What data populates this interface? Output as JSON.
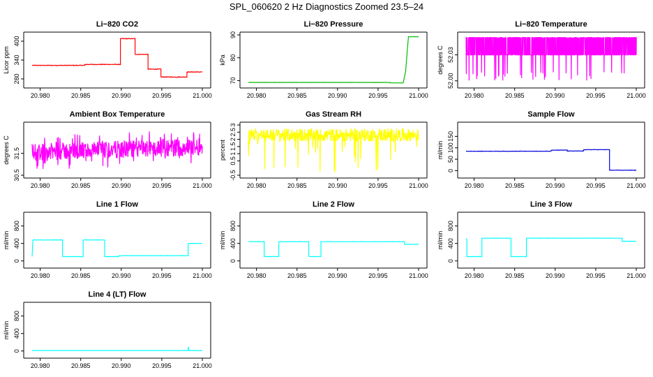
{
  "title": "SPL_060620  2 Hz Diagnostics Zoomed 23.5–24",
  "x_ticks": [
    "20.980",
    "20.985",
    "20.990",
    "20.995",
    "21.000"
  ],
  "chart_data": [
    {
      "type": "line",
      "title": "Li−820 CO2",
      "ylabel": "Licor ppm",
      "xlim": [
        20.979,
        21.0
      ],
      "ylim": [
        260,
        420
      ],
      "yticks": [
        280,
        340,
        400
      ],
      "color": "#ff0000",
      "noise": 2,
      "series": [
        {
          "x": [
            20.979,
            20.9855,
            20.9855,
            20.9899,
            20.9899,
            20.9917,
            20.9917,
            20.9933,
            20.9933,
            20.9949,
            20.9949,
            20.9981,
            20.9981,
            21.0
          ],
          "y": [
            323,
            323,
            326,
            326,
            408,
            408,
            358,
            358,
            311,
            311,
            286,
            286,
            302,
            302
          ]
        }
      ]
    },
    {
      "type": "line",
      "title": "Li−820 Pressure",
      "ylabel": "kPa",
      "xlim": [
        20.979,
        21.0
      ],
      "ylim": [
        68,
        90
      ],
      "yticks": [
        70,
        80,
        90
      ],
      "color": "#00bb00",
      "noise": 0.08,
      "series": [
        {
          "x": [
            20.979,
            20.9965,
            20.9965,
            20.9981,
            20.9984,
            20.9986,
            20.99875,
            21.0
          ],
          "y": [
            69.2,
            69.2,
            69.0,
            69.0,
            74,
            83,
            89.2,
            89.2
          ]
        }
      ]
    },
    {
      "type": "line",
      "title": "Li−820 Temperature",
      "ylabel": "degrees C",
      "xlim": [
        20.979,
        21.0
      ],
      "ylim": [
        51.995,
        52.053
      ],
      "yticks": [
        52.0,
        52.03
      ],
      "color": "#ff00ff",
      "pattern": "temperature",
      "series": [
        {
          "x": [
            20.979,
            21.0
          ],
          "y": [
            52.03,
            52.05
          ]
        }
      ]
    },
    {
      "type": "line",
      "title": "Ambient Box Temperature",
      "ylabel": "degrees C",
      "xlim": [
        20.979,
        21.0
      ],
      "ylim": [
        30.5,
        32.8
      ],
      "yticks": [
        30.5,
        31.5
      ],
      "color": "#ff00ff",
      "pattern": "ambient",
      "series": [
        {
          "x": [
            20.979,
            21.0
          ],
          "y": [
            31.5,
            31.8
          ]
        }
      ]
    },
    {
      "type": "line",
      "title": "Gas Stream RH",
      "ylabel": "percent",
      "xlim": [
        20.979,
        21.0
      ],
      "ylim": [
        -0.5,
        3.0
      ],
      "yticks": [
        -0.5,
        0.5,
        1.0,
        1.5,
        2.0,
        2.5,
        3.0
      ],
      "color": "#ffff00",
      "pattern": "rh",
      "series": [
        {
          "x": [
            20.979,
            21.0
          ],
          "y": [
            2.3,
            2.3
          ]
        }
      ]
    },
    {
      "type": "line",
      "title": "Sample Flow",
      "ylabel": "ml/min",
      "xlim": [
        20.979,
        21.0
      ],
      "ylim": [
        -20,
        200
      ],
      "yticks": [
        0,
        50,
        100,
        150
      ],
      "color": "#0000dd",
      "noise": 1.5,
      "series": [
        {
          "x": [
            20.979,
            20.9895,
            20.9895,
            20.9915,
            20.9915,
            20.9935,
            20.9935,
            20.9967,
            20.9967,
            21.0
          ],
          "y": [
            85,
            85,
            90,
            90,
            86,
            86,
            92,
            92,
            2,
            2
          ]
        }
      ]
    },
    {
      "type": "line",
      "title": "Line 1 Flow",
      "ylabel": "ml/min",
      "xlim": [
        20.979,
        21.0
      ],
      "ylim": [
        -100,
        1050
      ],
      "yticks": [
        0,
        400,
        800
      ],
      "color": "#00ffff",
      "noise": 6,
      "series": [
        {
          "x": [
            20.979,
            20.9791,
            20.98275,
            20.98275,
            20.9853,
            20.9853,
            20.98795,
            20.98795,
            20.9897,
            20.9897,
            20.99825,
            20.99825,
            21.0
          ],
          "y": [
            100,
            480,
            480,
            100,
            100,
            480,
            480,
            100,
            100,
            120,
            120,
            400,
            400
          ]
        }
      ]
    },
    {
      "type": "line",
      "title": "Line 2 Flow",
      "ylabel": "ml/min",
      "xlim": [
        20.979,
        21.0
      ],
      "ylim": [
        -100,
        1050
      ],
      "yticks": [
        0,
        400,
        800
      ],
      "color": "#00ffff",
      "noise": 6,
      "series": [
        {
          "x": [
            20.979,
            20.98095,
            20.98095,
            20.98275,
            20.98275,
            20.98645,
            20.98645,
            20.98795,
            20.98795,
            20.99825,
            20.99825,
            21.0
          ],
          "y": [
            440,
            440,
            100,
            100,
            440,
            440,
            100,
            100,
            440,
            440,
            380,
            380
          ]
        }
      ]
    },
    {
      "type": "line",
      "title": "Line 3 Flow",
      "ylabel": "ml/min",
      "xlim": [
        20.979,
        21.0
      ],
      "ylim": [
        -100,
        1050
      ],
      "yticks": [
        0,
        400,
        800
      ],
      "color": "#00ffff",
      "noise": 6,
      "series": [
        {
          "x": [
            20.979,
            20.9791,
            20.9791,
            20.98095,
            20.98095,
            20.98455,
            20.98455,
            20.98645,
            20.98645,
            20.99825,
            20.99825,
            21.0
          ],
          "y": [
            500,
            500,
            100,
            100,
            520,
            520,
            100,
            100,
            520,
            520,
            450,
            450
          ]
        }
      ]
    },
    {
      "type": "line",
      "title": "Line 4 (LT) Flow",
      "ylabel": "ml/min",
      "xlim": [
        20.979,
        21.0
      ],
      "ylim": [
        -100,
        1050
      ],
      "yticks": [
        0,
        400,
        800
      ],
      "color": "#00ffff",
      "noise": 1,
      "series": [
        {
          "x": [
            20.979,
            20.99825,
            20.99825,
            20.9983,
            20.9983,
            21.0
          ],
          "y": [
            10,
            10,
            80,
            80,
            10,
            10
          ]
        }
      ]
    }
  ]
}
